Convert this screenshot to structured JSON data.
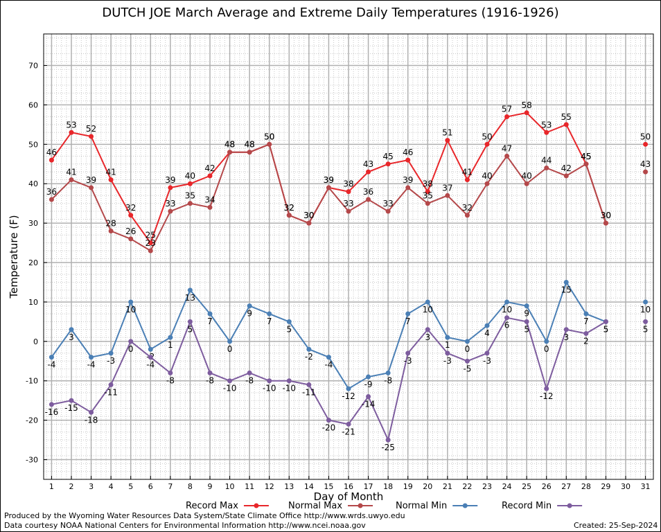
{
  "title": "DUTCH JOE March Average and Extreme Daily Temperatures (1916-1926)",
  "footer": {
    "produced_by": "Produced by the Wyoming Water Resources Data System/State Climate Office http://www.wrds.uwyo.edu",
    "courtesy": "Data courtesy NOAA National Centers for Environmental Information http://www.ncei.noaa.gov",
    "created": "Created:  25-Sep-2024"
  },
  "chart_data": {
    "type": "line",
    "title": "DUTCH JOE March Average and Extreme Daily Temperatures (1916-1926)",
    "xlabel": "Day of Month",
    "ylabel": "Temperature (F)",
    "xlim": [
      0.6,
      31.4
    ],
    "ylim": [
      -35,
      78
    ],
    "yticks": [
      -30,
      -20,
      -10,
      0,
      10,
      20,
      30,
      40,
      50,
      60,
      70
    ],
    "x": [
      1,
      2,
      3,
      4,
      5,
      6,
      7,
      8,
      9,
      10,
      11,
      12,
      13,
      14,
      15,
      16,
      17,
      18,
      19,
      20,
      21,
      22,
      23,
      24,
      25,
      26,
      27,
      28,
      29,
      30,
      31
    ],
    "grid": true,
    "legend_position": "bottom",
    "series": [
      {
        "name": "Record Max",
        "color": "#e8262a",
        "values": [
          46,
          53,
          52,
          41,
          32,
          25,
          39,
          40,
          42,
          48,
          48,
          50,
          32,
          30,
          39,
          38,
          43,
          45,
          46,
          38,
          51,
          41,
          50,
          57,
          58,
          53,
          55,
          45,
          30,
          null,
          50
        ]
      },
      {
        "name": "Normal Max",
        "color": "#b4484a",
        "values": [
          36,
          41,
          39,
          28,
          26,
          23,
          33,
          35,
          34,
          48,
          48,
          50,
          32,
          30,
          39,
          33,
          36,
          33,
          39,
          35,
          37,
          32,
          40,
          47,
          40,
          44,
          42,
          45,
          30,
          null,
          43
        ]
      },
      {
        "name": "Normal Min",
        "color": "#4a7fb5",
        "values": [
          -4,
          3,
          -4,
          -3,
          10,
          -2,
          1,
          13,
          7,
          0,
          9,
          7,
          5,
          -2,
          -4,
          -12,
          -9,
          -8,
          7,
          10,
          1,
          0,
          4,
          10,
          9,
          0,
          15,
          7,
          5,
          null,
          10
        ]
      },
      {
        "name": "Record Min",
        "color": "#7d5c9e",
        "values": [
          -16,
          -15,
          -18,
          -11,
          0,
          -4,
          -8,
          5,
          -8,
          -10,
          -8,
          -10,
          -10,
          -11,
          -20,
          -21,
          -14,
          -25,
          -3,
          3,
          -3,
          -5,
          -3,
          6,
          5,
          -12,
          3,
          2,
          5,
          null,
          5
        ]
      }
    ]
  }
}
